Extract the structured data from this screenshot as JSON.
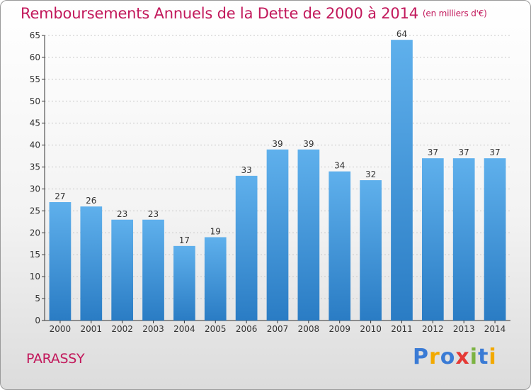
{
  "title": "Remboursements Annuels de la Dette de 2000 à 2014",
  "subtitle": "(en milliers d'€)",
  "commune": "PARASSY",
  "logo": {
    "text": "Proxiti",
    "letters": [
      "P",
      "r",
      "o",
      "x",
      "i",
      "t",
      "i"
    ],
    "colors": [
      "#3a7bd5",
      "#f2a900",
      "#3a7bd5",
      "#e53935",
      "#7cb342",
      "#3a7bd5",
      "#f2a900"
    ]
  },
  "colors": {
    "title": "#c2185b",
    "bar_top": "#5fb0ec",
    "bar_bottom": "#2a7cc4",
    "grid": "#c8c8c8",
    "axis": "#333333"
  },
  "chart_data": {
    "type": "bar",
    "categories": [
      "2000",
      "2001",
      "2002",
      "2003",
      "2004",
      "2005",
      "2006",
      "2007",
      "2008",
      "2009",
      "2010",
      "2011",
      "2012",
      "2013",
      "2014"
    ],
    "values": [
      27,
      26,
      23,
      23,
      17,
      19,
      33,
      39,
      39,
      34,
      32,
      64,
      37,
      37,
      37
    ],
    "ylim": [
      0,
      65
    ],
    "yticks": [
      0,
      5,
      10,
      15,
      20,
      25,
      30,
      35,
      40,
      45,
      50,
      55,
      60,
      65
    ],
    "grid": true,
    "data_labels": true,
    "legend": "none"
  }
}
